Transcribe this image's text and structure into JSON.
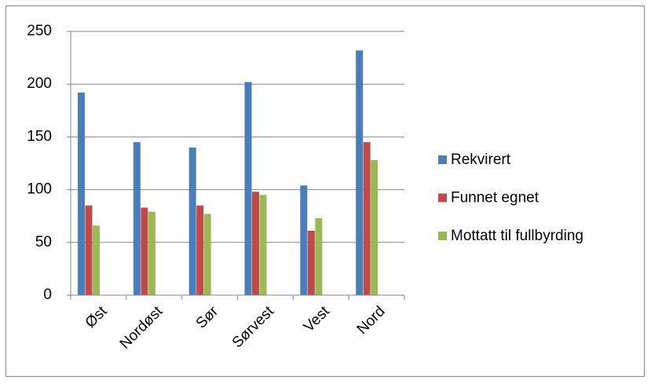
{
  "chart_data": {
    "type": "bar",
    "categories": [
      "Øst",
      "Nordøst",
      "Sør",
      "Sørvest",
      "Vest",
      "Nord"
    ],
    "series": [
      {
        "name": "Rekvirert",
        "color": "#4a7ebb",
        "values": [
          192,
          145,
          140,
          202,
          104,
          232
        ]
      },
      {
        "name": "Funnet egnet",
        "color": "#be4b48",
        "values": [
          85,
          83,
          85,
          98,
          61,
          145
        ]
      },
      {
        "name": "Mottatt til fullbyrding",
        "color": "#98b954",
        "values": [
          66,
          79,
          77,
          95,
          73,
          128
        ]
      }
    ],
    "ylim": [
      0,
      250
    ],
    "yticks": [
      0,
      50,
      100,
      150,
      200,
      250
    ],
    "grid": true,
    "legend": "right"
  }
}
